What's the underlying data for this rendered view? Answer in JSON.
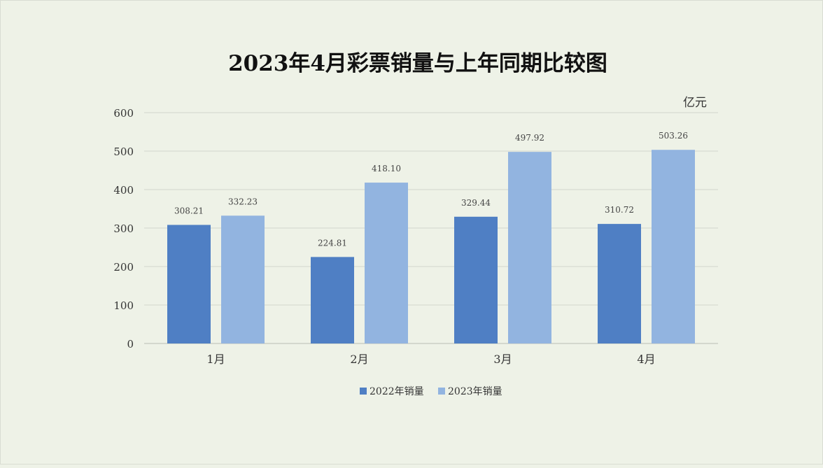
{
  "chart_data": {
    "type": "bar",
    "title": "2023年4月彩票销量与上年同期比较图",
    "unit": "亿元",
    "categories": [
      "1月",
      "2月",
      "3月",
      "4月"
    ],
    "series": [
      {
        "name": "2022年销量",
        "values": [
          308.21,
          224.81,
          329.44,
          310.72
        ],
        "labels": [
          "308.21",
          "224.81",
          "329.44",
          "310.72"
        ],
        "color": "#4f7fc4"
      },
      {
        "name": "2023年销量",
        "values": [
          332.23,
          418.1,
          497.92,
          503.26
        ],
        "labels": [
          "332.23",
          "418.10",
          "497.92",
          "503.26"
        ],
        "color": "#92b4e0"
      }
    ],
    "ylim": [
      0,
      600
    ],
    "yticks": [
      "0",
      "100",
      "200",
      "300",
      "400",
      "500",
      "600"
    ],
    "grid": true,
    "legend_position": "bottom"
  }
}
